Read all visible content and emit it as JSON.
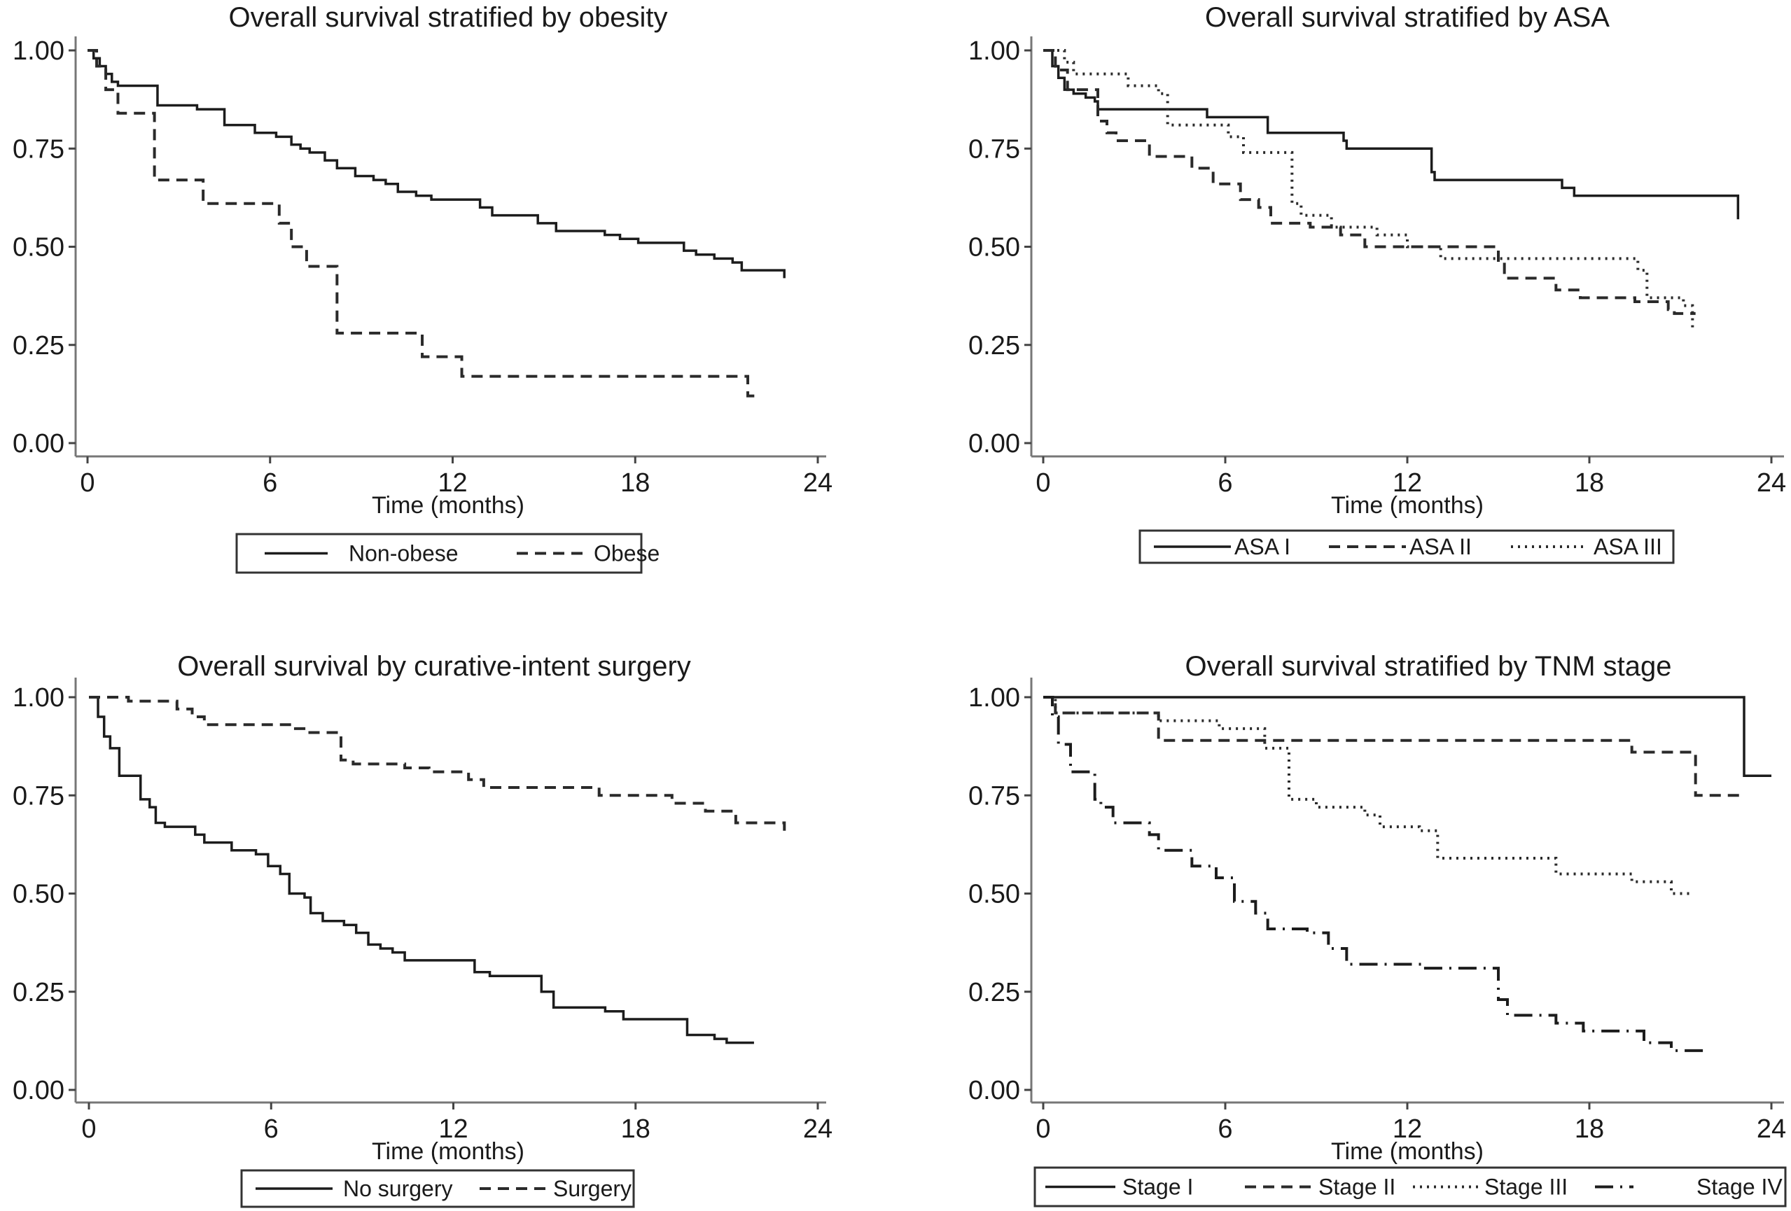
{
  "chart_data": [
    {
      "id": "obesity",
      "type": "line",
      "subtype": "kaplan-meier-step",
      "title": "Overall survival stratified by obesity",
      "xlabel": "Time (months)",
      "ylabel": "",
      "xlim": [
        0,
        24
      ],
      "ylim": [
        0,
        1
      ],
      "xticks": [
        0,
        6,
        12,
        18,
        24
      ],
      "yticks": [
        "0.00",
        "0.25",
        "0.50",
        "0.75",
        "1.00"
      ],
      "grid": false,
      "legend_position": "bottom",
      "series": [
        {
          "name": "Non-obese",
          "style": "solid",
          "x": [
            0,
            0.2,
            0.4,
            0.6,
            0.8,
            1.0,
            1.3,
            2.3,
            2.6,
            3.6,
            4.5,
            5.0,
            5.5,
            6.2,
            6.7,
            7.0,
            7.3,
            7.8,
            8.2,
            8.8,
            9.4,
            9.8,
            10.2,
            10.8,
            11.3,
            12.9,
            13.3,
            14.8,
            15.4,
            17.0,
            17.5,
            18.1,
            19.6,
            20.0,
            20.6,
            21.2,
            21.5,
            22.9
          ],
          "y": [
            1.0,
            0.98,
            0.96,
            0.94,
            0.92,
            0.91,
            0.91,
            0.86,
            0.86,
            0.85,
            0.81,
            0.81,
            0.79,
            0.78,
            0.76,
            0.75,
            0.74,
            0.72,
            0.7,
            0.68,
            0.67,
            0.66,
            0.64,
            0.63,
            0.62,
            0.6,
            0.58,
            0.56,
            0.54,
            0.53,
            0.52,
            0.51,
            0.49,
            0.48,
            0.47,
            0.46,
            0.44,
            0.42
          ]
        },
        {
          "name": "Obese",
          "style": "dashed",
          "x": [
            0,
            0.3,
            0.6,
            1.0,
            2.2,
            3.8,
            6.3,
            6.7,
            7.2,
            8.2,
            11.0,
            12.3,
            21.7,
            22.0
          ],
          "y": [
            1.0,
            0.96,
            0.9,
            0.84,
            0.67,
            0.61,
            0.56,
            0.5,
            0.45,
            0.28,
            0.22,
            0.17,
            0.12,
            0.11
          ]
        }
      ],
      "legend": [
        "Non-obese",
        "Obese"
      ]
    },
    {
      "id": "asa",
      "type": "line",
      "subtype": "kaplan-meier-step",
      "title": "Overall survival stratified by ASA",
      "xlabel": "Time (months)",
      "ylabel": "",
      "xlim": [
        0,
        24
      ],
      "ylim": [
        0,
        1
      ],
      "xticks": [
        0,
        6,
        12,
        18,
        24
      ],
      "yticks": [
        "0.00",
        "0.25",
        "0.50",
        "0.75",
        "1.00"
      ],
      "grid": false,
      "legend_position": "bottom",
      "series": [
        {
          "name": "ASA I",
          "style": "solid",
          "x": [
            0,
            0.3,
            0.5,
            0.7,
            1.0,
            1.4,
            1.7,
            1.8,
            5.4,
            7.4,
            9.9,
            10.0,
            12.8,
            12.9,
            17.1,
            17.5,
            22.9
          ],
          "y": [
            1.0,
            0.96,
            0.93,
            0.9,
            0.89,
            0.88,
            0.87,
            0.85,
            0.83,
            0.79,
            0.77,
            0.75,
            0.69,
            0.67,
            0.65,
            0.63,
            0.57
          ]
        },
        {
          "name": "ASA II",
          "style": "dashed",
          "x": [
            0,
            0.4,
            0.8,
            1.8,
            2.1,
            2.4,
            3.5,
            4.9,
            5.6,
            6.5,
            7.1,
            7.5,
            8.8,
            9.8,
            10.6,
            15.0,
            15.2,
            16.9,
            17.7,
            19.5,
            20.6,
            20.8,
            21.5
          ],
          "y": [
            1.0,
            0.95,
            0.9,
            0.82,
            0.79,
            0.77,
            0.73,
            0.7,
            0.66,
            0.62,
            0.6,
            0.56,
            0.55,
            0.53,
            0.5,
            0.46,
            0.42,
            0.39,
            0.37,
            0.36,
            0.34,
            0.33,
            0.33
          ]
        },
        {
          "name": "ASA III",
          "style": "dotted",
          "x": [
            0,
            0.7,
            1.0,
            1.8,
            2.8,
            3.8,
            4.1,
            6.1,
            6.6,
            8.2,
            8.5,
            9.5,
            11.0,
            12.0,
            13.1,
            19.6,
            19.9,
            21.1,
            21.4
          ],
          "y": [
            1.0,
            0.97,
            0.94,
            0.94,
            0.91,
            0.89,
            0.81,
            0.78,
            0.74,
            0.61,
            0.58,
            0.55,
            0.53,
            0.5,
            0.47,
            0.44,
            0.37,
            0.35,
            0.29
          ]
        }
      ],
      "legend": [
        "ASA I",
        "ASA II",
        "ASA III"
      ]
    },
    {
      "id": "surgery",
      "type": "line",
      "subtype": "kaplan-meier-step",
      "title": "Overall survival by curative-intent surgery",
      "xlabel": "Time (months)",
      "ylabel": "",
      "xlim": [
        0,
        24
      ],
      "ylim": [
        0,
        1
      ],
      "xticks": [
        0,
        6,
        12,
        18,
        24
      ],
      "yticks": [
        "0.00",
        "0.25",
        "0.50",
        "0.75",
        "1.00"
      ],
      "grid": false,
      "legend_position": "bottom",
      "series": [
        {
          "name": "No surgery",
          "style": "solid",
          "x": [
            0,
            0.3,
            0.5,
            0.7,
            1.0,
            1.7,
            2.0,
            2.2,
            2.5,
            3.5,
            3.8,
            4.7,
            5.5,
            5.9,
            6.3,
            6.6,
            7.1,
            7.3,
            7.7,
            8.4,
            8.8,
            9.2,
            9.6,
            10.0,
            10.4,
            12.7,
            13.2,
            14.9,
            15.3,
            17.0,
            17.6,
            19.7,
            20.6,
            21.0,
            21.9
          ],
          "y": [
            1.0,
            0.95,
            0.9,
            0.87,
            0.8,
            0.74,
            0.72,
            0.68,
            0.67,
            0.65,
            0.63,
            0.61,
            0.6,
            0.57,
            0.55,
            0.5,
            0.49,
            0.45,
            0.43,
            0.42,
            0.4,
            0.37,
            0.36,
            0.35,
            0.33,
            0.3,
            0.29,
            0.25,
            0.21,
            0.2,
            0.18,
            0.14,
            0.13,
            0.12,
            0.12
          ]
        },
        {
          "name": "Surgery",
          "style": "dashed",
          "x": [
            0,
            1.3,
            2.9,
            3.4,
            3.8,
            6.8,
            7.2,
            8.3,
            8.7,
            10.4,
            11.2,
            12.5,
            13.0,
            16.8,
            19.2,
            20.3,
            21.3,
            22.9
          ],
          "y": [
            1.0,
            0.99,
            0.97,
            0.95,
            0.93,
            0.92,
            0.91,
            0.84,
            0.83,
            0.82,
            0.81,
            0.79,
            0.77,
            0.75,
            0.73,
            0.71,
            0.68,
            0.66
          ]
        }
      ],
      "legend": [
        "No surgery",
        "Surgery"
      ]
    },
    {
      "id": "tnm",
      "type": "line",
      "subtype": "kaplan-meier-step",
      "title": "Overall survival stratified by TNM stage",
      "xlabel": "Time (months)",
      "ylabel": "",
      "xlim": [
        0,
        24
      ],
      "ylim": [
        0,
        1
      ],
      "xticks": [
        0,
        6,
        12,
        18,
        24
      ],
      "yticks": [
        "0.00",
        "0.25",
        "0.50",
        "0.75",
        "1.00"
      ],
      "grid": false,
      "legend_position": "bottom",
      "series": [
        {
          "name": "Stage I",
          "style": "solid",
          "x": [
            0,
            23.1,
            24.0
          ],
          "y": [
            1.0,
            0.8,
            0.8
          ]
        },
        {
          "name": "Stage II",
          "style": "dashed",
          "x": [
            0,
            0.4,
            3.8,
            19.4,
            21.5,
            23.0
          ],
          "y": [
            1.0,
            0.96,
            0.89,
            0.86,
            0.75,
            0.75
          ]
        },
        {
          "name": "Stage III",
          "style": "dotted",
          "x": [
            0,
            0.4,
            3.8,
            5.8,
            7.3,
            8.1,
            9.0,
            10.6,
            11.1,
            12.4,
            13.0,
            16.9,
            19.4,
            20.7,
            21.4
          ],
          "y": [
            1.0,
            0.96,
            0.94,
            0.92,
            0.87,
            0.74,
            0.72,
            0.7,
            0.67,
            0.66,
            0.59,
            0.55,
            0.53,
            0.5,
            0.5
          ]
        },
        {
          "name": "Stage IV",
          "style": "dash-dot",
          "x": [
            0,
            0.3,
            0.5,
            0.9,
            1.7,
            1.9,
            2.3,
            3.5,
            3.8,
            4.9,
            5.7,
            6.3,
            7.0,
            7.4,
            8.7,
            9.4,
            10.0,
            12.5,
            15.0,
            15.3,
            16.9,
            17.8,
            19.8,
            20.7,
            21.8
          ],
          "y": [
            1.0,
            0.95,
            0.88,
            0.81,
            0.74,
            0.72,
            0.68,
            0.65,
            0.61,
            0.57,
            0.54,
            0.48,
            0.45,
            0.41,
            0.4,
            0.36,
            0.32,
            0.31,
            0.23,
            0.19,
            0.17,
            0.15,
            0.12,
            0.1,
            0.09
          ]
        }
      ],
      "legend": [
        "Stage I",
        "Stage II",
        "Stage III",
        "Stage IV"
      ]
    }
  ]
}
